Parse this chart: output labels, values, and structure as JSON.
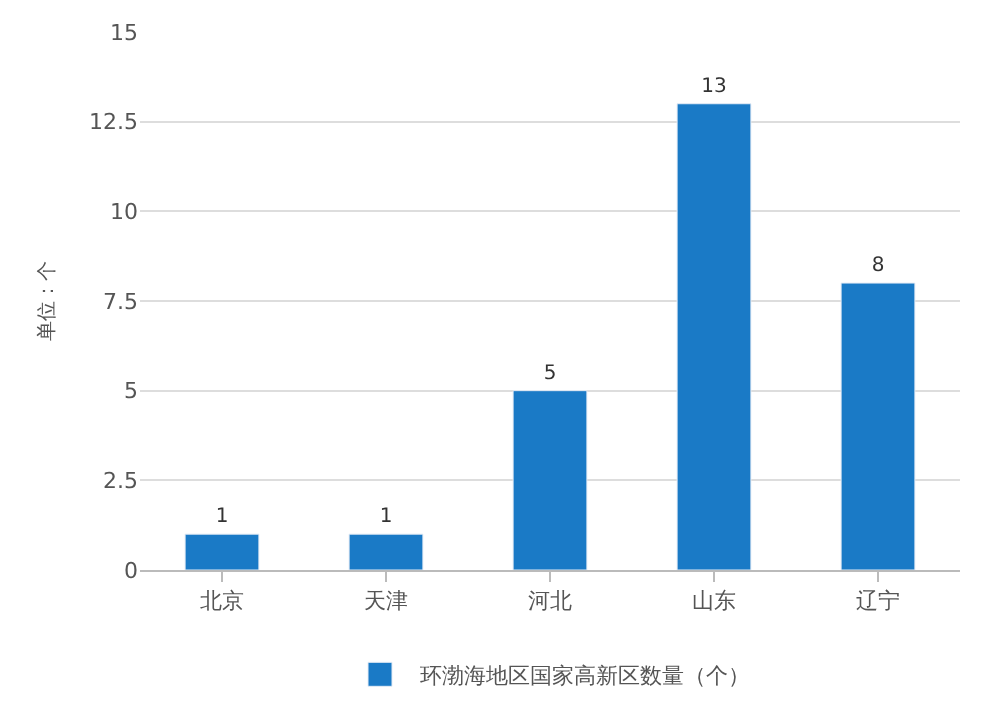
{
  "chart_data": {
    "type": "bar",
    "ylabel": "单位：个",
    "categories": [
      "北京",
      "天津",
      "河北",
      "山东",
      "辽宁"
    ],
    "series": [
      {
        "name": "环渤海地区国家高新区数量（个）",
        "color": "#1a7ac6",
        "values": [
          1,
          1,
          5,
          13,
          8
        ]
      }
    ],
    "ylim": [
      0,
      15
    ],
    "yticks": [
      0,
      2.5,
      5,
      7.5,
      10,
      12.5,
      15
    ],
    "grid": "y",
    "legend": "bottom",
    "data_labels": true
  }
}
